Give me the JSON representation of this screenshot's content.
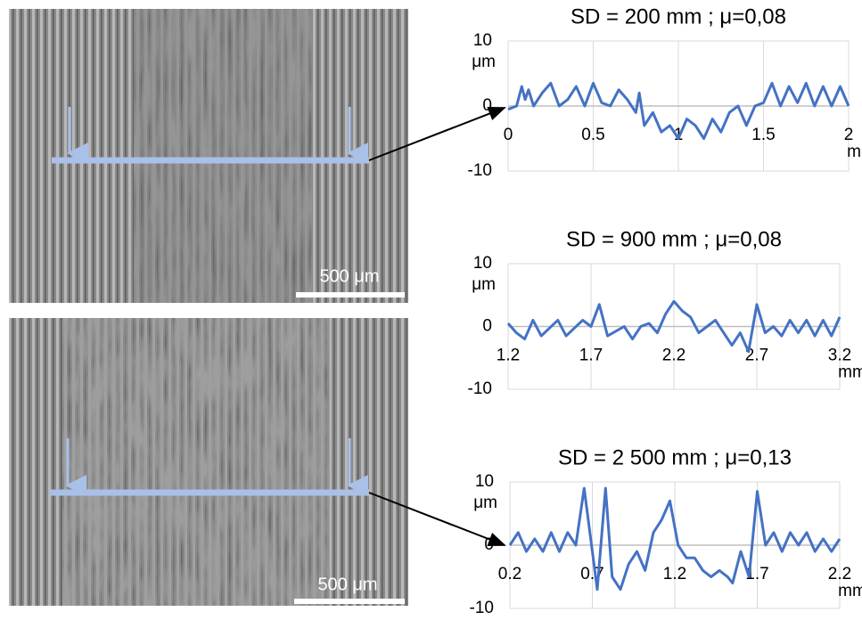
{
  "chart_data": [
    {
      "type": "line",
      "title": "SD = 200 mm ; μ=0,08",
      "xlabel": "mm",
      "ylabel": "μm",
      "xlim": [
        0,
        2
      ],
      "xticks": [
        0,
        0.5,
        1,
        1.5,
        2
      ],
      "ylim": [
        -10,
        10
      ],
      "yticks": [
        -10,
        0,
        10
      ],
      "grid": true,
      "x": [
        0,
        0.05,
        0.08,
        0.1,
        0.12,
        0.15,
        0.2,
        0.25,
        0.3,
        0.35,
        0.4,
        0.45,
        0.5,
        0.55,
        0.6,
        0.65,
        0.7,
        0.75,
        0.77,
        0.8,
        0.85,
        0.9,
        0.95,
        1.0,
        1.05,
        1.1,
        1.15,
        1.2,
        1.25,
        1.3,
        1.35,
        1.4,
        1.45,
        1.5,
        1.55,
        1.6,
        1.65,
        1.7,
        1.75,
        1.8,
        1.85,
        1.9,
        1.95,
        2.0
      ],
      "series": [
        {
          "color": "#4472c4",
          "values": [
            -0.5,
            0,
            3,
            1,
            2.5,
            0,
            2,
            3.5,
            0,
            1,
            3,
            0,
            3.5,
            0.5,
            0,
            2.5,
            1,
            -1,
            2,
            -3,
            -1,
            -4,
            -3,
            -5,
            -2,
            -3,
            -5,
            -2,
            -4,
            -1,
            0,
            -3,
            0,
            0.5,
            3.5,
            0,
            3,
            0.5,
            3.5,
            0,
            3,
            0,
            3,
            0
          ]
        }
      ]
    },
    {
      "type": "line",
      "title": "SD = 900 mm ; μ=0,08",
      "xlabel": "mm",
      "ylabel": "μm",
      "xlim": [
        1.2,
        3.2
      ],
      "xticks": [
        1.2,
        1.7,
        2.2,
        2.7,
        3.2
      ],
      "ylim": [
        -10,
        10
      ],
      "yticks": [
        -10,
        0,
        10
      ],
      "grid": true,
      "x": [
        1.2,
        1.25,
        1.3,
        1.35,
        1.4,
        1.5,
        1.55,
        1.65,
        1.7,
        1.75,
        1.8,
        1.9,
        1.95,
        2.0,
        2.05,
        2.1,
        2.15,
        2.2,
        2.25,
        2.3,
        2.35,
        2.4,
        2.45,
        2.5,
        2.55,
        2.6,
        2.65,
        2.7,
        2.75,
        2.8,
        2.85,
        2.9,
        2.95,
        3.0,
        3.05,
        3.1,
        3.15,
        3.2
      ],
      "series": [
        {
          "color": "#4472c4",
          "values": [
            0.5,
            -1,
            -2,
            1,
            -1.5,
            1,
            -1.5,
            1,
            0,
            3.5,
            -1.5,
            0,
            -2,
            0,
            0.5,
            -1,
            2,
            4,
            2.5,
            1.5,
            -1,
            0,
            1,
            -1,
            -3,
            -1,
            -4,
            3.5,
            -1,
            0,
            -1.5,
            1,
            -1,
            1,
            -1.5,
            1,
            -1.5,
            1.5
          ]
        }
      ]
    },
    {
      "type": "line",
      "title": "SD = 2 500 mm ; μ=0,13",
      "xlabel": "mm",
      "ylabel": "μm",
      "xlim": [
        0.2,
        2.2
      ],
      "xticks": [
        0.2,
        0.7,
        1.2,
        1.7,
        2.2
      ],
      "ylim": [
        -10,
        10
      ],
      "yticks": [
        -10,
        0,
        10
      ],
      "grid": true,
      "x": [
        0.2,
        0.25,
        0.3,
        0.35,
        0.4,
        0.45,
        0.5,
        0.55,
        0.6,
        0.65,
        0.7,
        0.73,
        0.78,
        0.82,
        0.87,
        0.92,
        0.97,
        1.02,
        1.07,
        1.12,
        1.17,
        1.22,
        1.27,
        1.32,
        1.37,
        1.42,
        1.47,
        1.52,
        1.55,
        1.6,
        1.65,
        1.7,
        1.75,
        1.8,
        1.85,
        1.9,
        1.95,
        2.0,
        2.05,
        2.1,
        2.15,
        2.2
      ],
      "series": [
        {
          "color": "#4472c4",
          "values": [
            0,
            2,
            -1,
            1,
            -1,
            2,
            -1,
            2,
            0,
            9,
            -1,
            -7,
            9,
            -5,
            -7,
            -3,
            -1,
            -4,
            2,
            4,
            7,
            0,
            -2,
            -2,
            -4,
            -5,
            -4,
            -5,
            -6,
            -1,
            -5,
            8.5,
            0,
            2,
            -1,
            2,
            0,
            2,
            -1,
            1,
            -1,
            1
          ]
        }
      ]
    }
  ],
  "images": [
    {
      "scale_label": "500 μm"
    },
    {
      "scale_label": "500 μm"
    }
  ]
}
